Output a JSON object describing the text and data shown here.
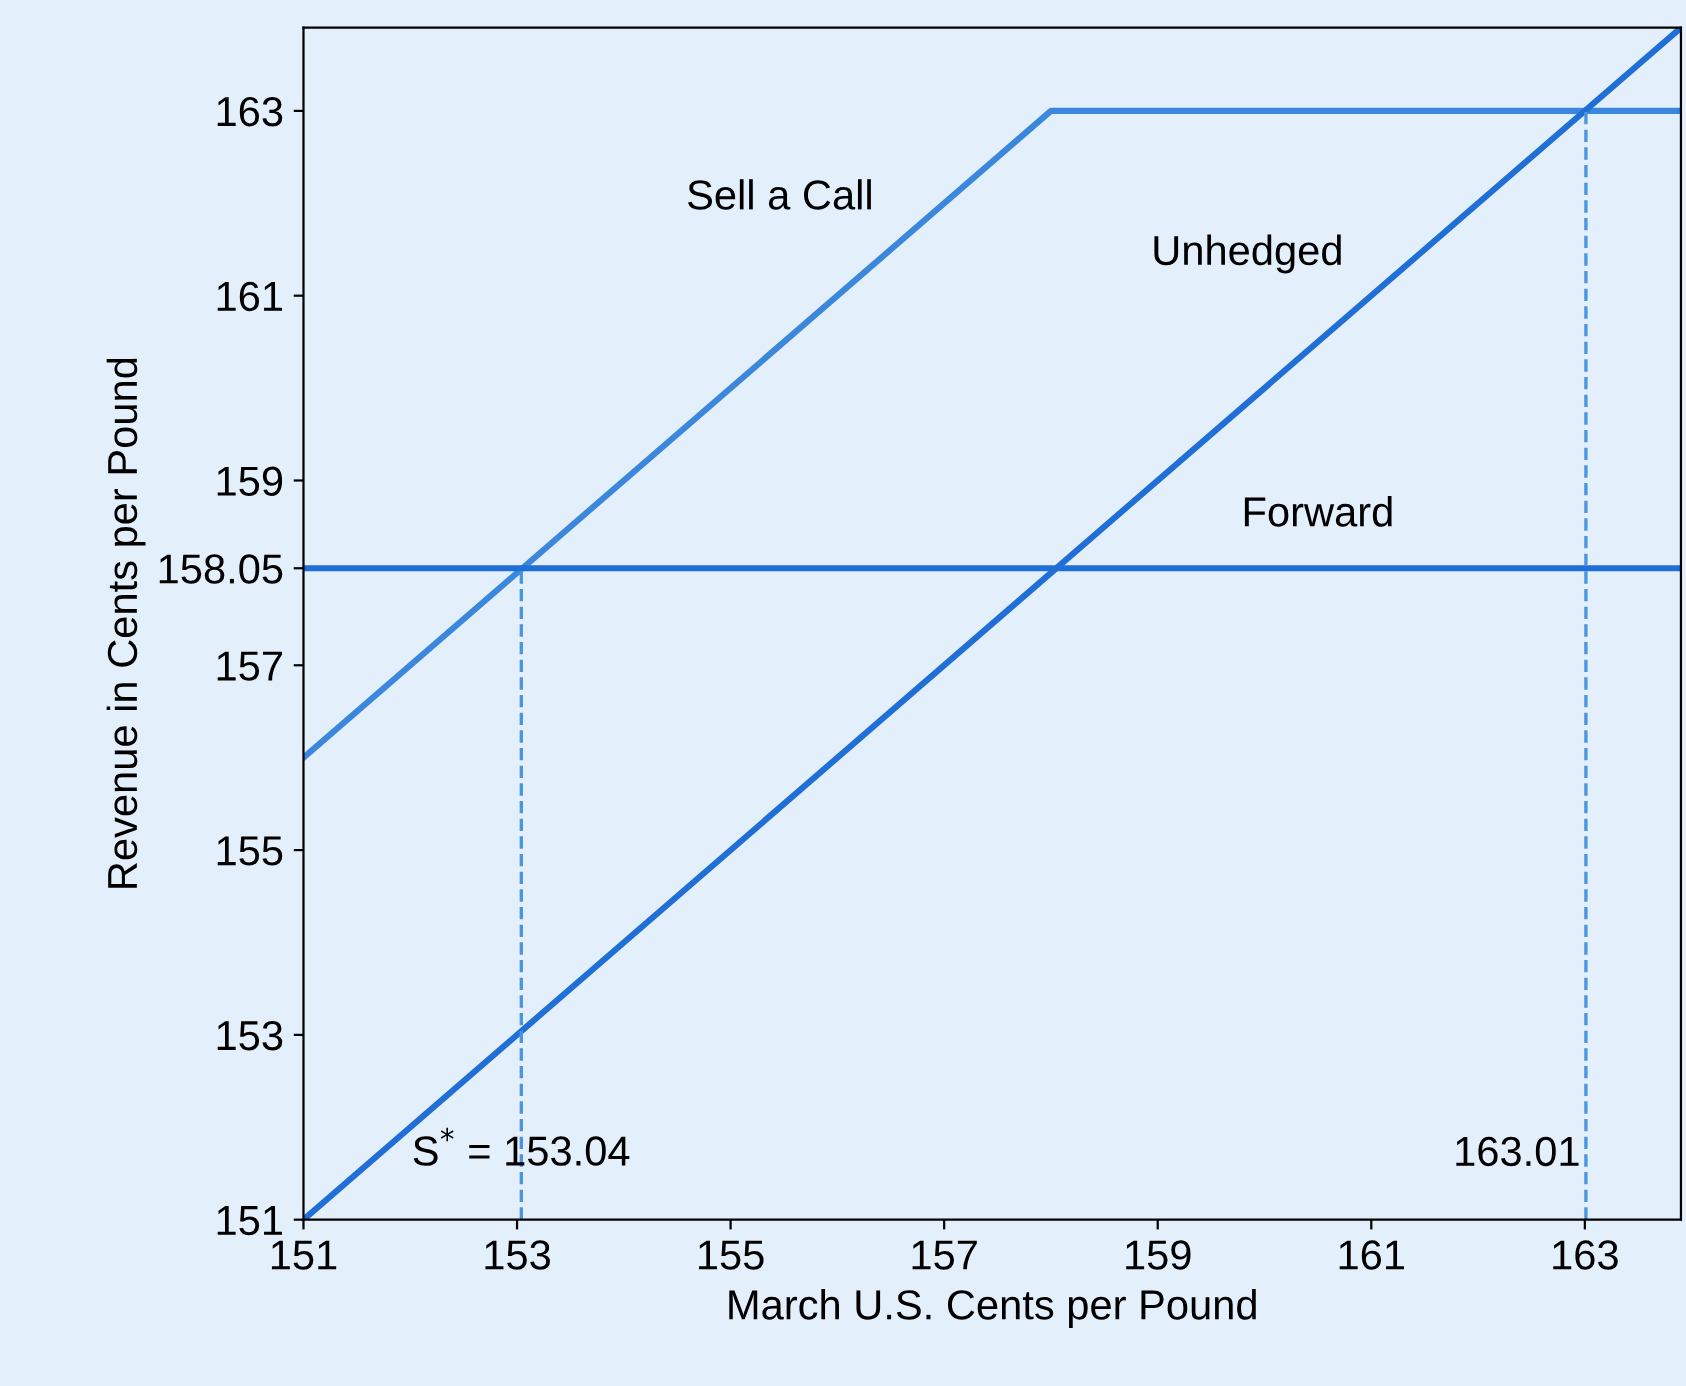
{
  "chart_data": {
    "type": "line",
    "xlabel": "March U.S. Cents per Pound",
    "ylabel": "Revenue in Cents per Pound",
    "xlim": [
      151,
      163.9
    ],
    "ylim": [
      151,
      163.9
    ],
    "xticks": [
      151,
      153,
      155,
      157,
      159,
      161,
      163
    ],
    "yticks": [
      151,
      153,
      155,
      157,
      158.05,
      159,
      161,
      163
    ],
    "grid": false,
    "marker": "none",
    "series": [
      {
        "name": "Sell a Call",
        "color": "#3b87dc",
        "x": [
          151,
          158,
          163.9
        ],
        "values": [
          156,
          163,
          163
        ],
        "line_style": "solid"
      },
      {
        "name": "Unhedged",
        "color": "#1f6fd6",
        "x": [
          151,
          163.9
        ],
        "values": [
          151,
          163.9
        ],
        "line_style": "solid"
      },
      {
        "name": "Forward",
        "color": "#1f6fd6",
        "x": [
          151,
          163.9
        ],
        "values": [
          158.05,
          158.05
        ],
        "line_style": "solid"
      },
      {
        "color": "#4a95e0",
        "x": [
          153.04,
          153.04
        ],
        "values": [
          151,
          158.05
        ],
        "line_style": "dashed"
      },
      {
        "color": "#4a95e0",
        "x": [
          163.01,
          163.01
        ],
        "values": [
          151,
          163
        ],
        "line_style": "dashed"
      }
    ],
    "annotations": [
      {
        "text": "S$^{*}$ = 153.04",
        "x": 153.04,
        "y": 151.7
      },
      {
        "text": "163.01",
        "x": 163.01,
        "y": 151.7
      }
    ]
  }
}
